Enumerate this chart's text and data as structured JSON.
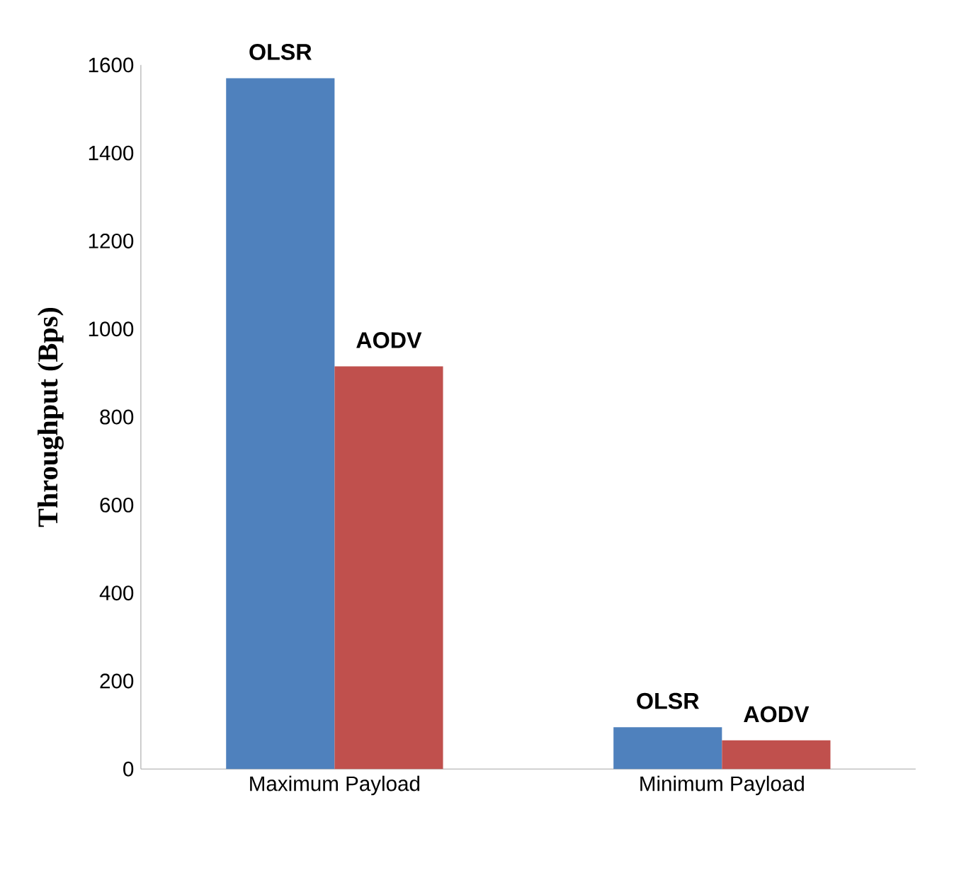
{
  "chart_data": {
    "type": "bar",
    "ylabel": "Throughput (Bps)",
    "categories": [
      "Maximum Payload",
      "Minimum Payload"
    ],
    "series": [
      {
        "name": "OLSR",
        "color": "#4f81bd",
        "values": [
          1570,
          95
        ]
      },
      {
        "name": "AODV",
        "color": "#c0504d",
        "values": [
          915,
          65
        ]
      }
    ],
    "ylim": [
      0,
      1600
    ],
    "yticks": [
      0,
      200,
      400,
      600,
      800,
      1000,
      1200,
      1400,
      1600
    ],
    "grid": false,
    "legend": false
  }
}
